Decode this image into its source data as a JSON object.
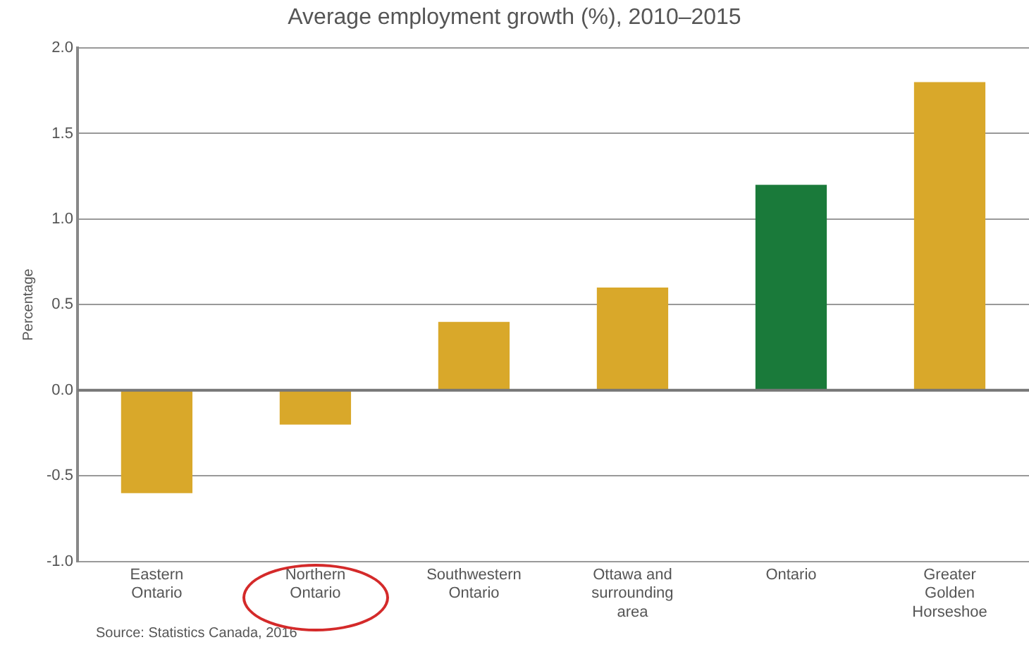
{
  "chart_data": {
    "type": "bar",
    "title": "Average employment growth (%), 2010–2015",
    "ylabel": "Percentage",
    "categories": [
      "Eastern\nOntario",
      "Northern\nOntario",
      "Southwestern\nOntario",
      "Ottawa and\nsurrounding\narea",
      "Ontario",
      "Greater\nGolden\nHorseshoe"
    ],
    "values": [
      -0.6,
      -0.2,
      0.4,
      0.6,
      1.2,
      1.8
    ],
    "colors": [
      "#d9a82a",
      "#d9a82a",
      "#d9a82a",
      "#d9a82a",
      "#1a7a3a",
      "#d9a82a"
    ],
    "ylim": [
      -1.0,
      2.0
    ],
    "yticks": [
      {
        "value": -1,
        "label": "-1.0"
      },
      {
        "value": -0.5,
        "label": "-0.5"
      },
      {
        "value": 0,
        "label": "0.0"
      },
      {
        "value": 0.5,
        "label": "0.5"
      },
      {
        "value": 1,
        "label": "1.0"
      },
      {
        "value": 1.5,
        "label": "1.5"
      },
      {
        "value": 2,
        "label": "2.0"
      }
    ],
    "grid": "y",
    "legend": false,
    "annotations": [
      "Source: Statistics Canada, 2016"
    ]
  }
}
